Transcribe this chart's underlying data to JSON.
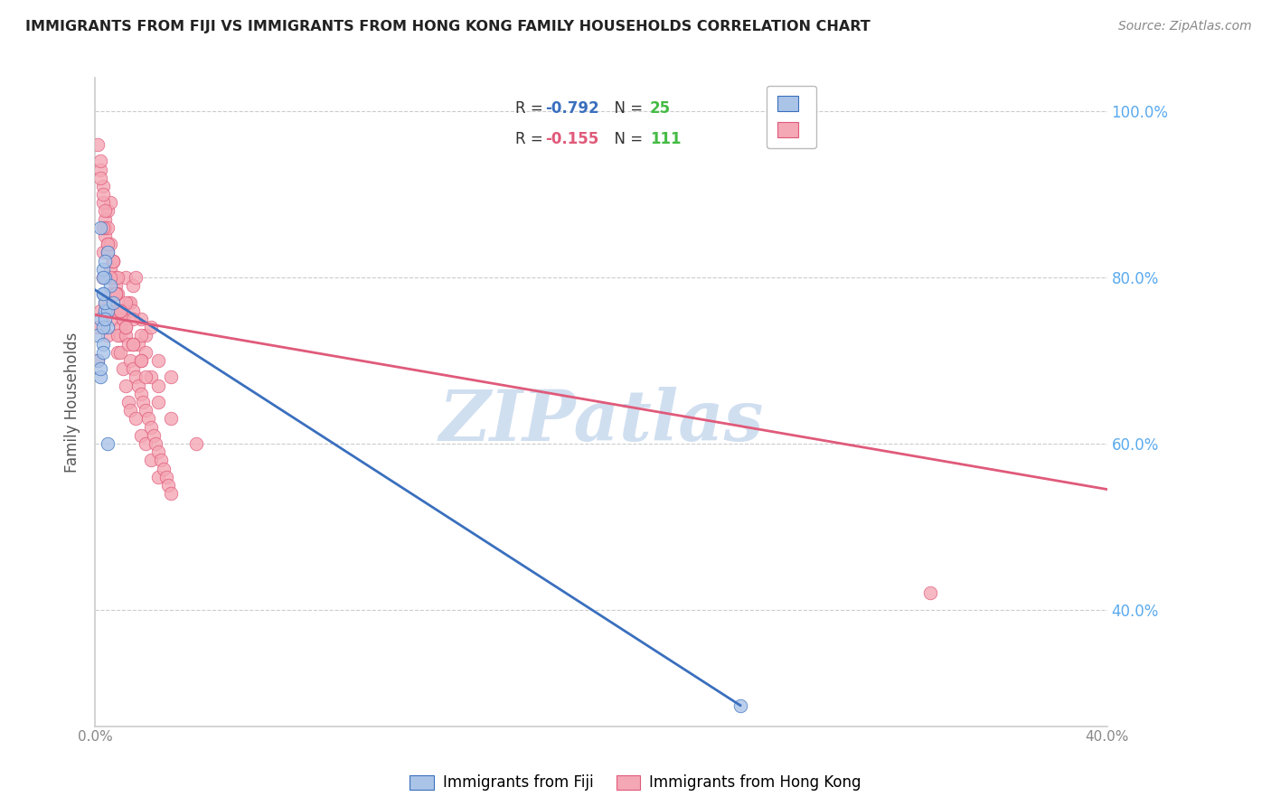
{
  "title": "IMMIGRANTS FROM FIJI VS IMMIGRANTS FROM HONG KONG FAMILY HOUSEHOLDS CORRELATION CHART",
  "source": "Source: ZipAtlas.com",
  "ylabel": "Family Households",
  "xlim": [
    0.0,
    0.4
  ],
  "ylim": [
    0.26,
    1.04
  ],
  "x_ticks": [
    0.0,
    0.05,
    0.1,
    0.15,
    0.2,
    0.25,
    0.3,
    0.35,
    0.4
  ],
  "x_tick_labels": [
    "0.0%",
    "",
    "",
    "",
    "",
    "",
    "",
    "",
    "40.0%"
  ],
  "y_ticks": [
    0.4,
    0.6,
    0.8,
    1.0
  ],
  "y_tick_labels": [
    "40.0%",
    "60.0%",
    "80.0%",
    "100.0%"
  ],
  "fiji_R": -0.792,
  "fiji_N": 25,
  "hk_R": -0.155,
  "hk_N": 111,
  "fiji_color": "#aac4e8",
  "hk_color": "#f4a7b5",
  "fiji_line_color": "#3a6fbe",
  "hk_line_color": "#e05a7a",
  "watermark_color": "#d0dff0",
  "fiji_line_x0": 0.0,
  "fiji_line_y0": 0.785,
  "fiji_line_x1": 0.255,
  "fiji_line_y1": 0.285,
  "hk_line_x0": 0.0,
  "hk_line_y0": 0.755,
  "hk_line_x1": 0.4,
  "hk_line_y1": 0.545,
  "fiji_scatter_x": [
    0.001,
    0.002,
    0.003,
    0.001,
    0.003,
    0.004,
    0.005,
    0.002,
    0.003,
    0.004,
    0.006,
    0.005,
    0.003,
    0.004,
    0.002,
    0.007,
    0.005,
    0.003,
    0.002,
    0.004,
    0.003,
    0.003,
    0.004,
    0.005,
    0.255
  ],
  "fiji_scatter_y": [
    0.73,
    0.75,
    0.78,
    0.7,
    0.72,
    0.76,
    0.74,
    0.68,
    0.71,
    0.8,
    0.79,
    0.76,
    0.74,
    0.77,
    0.69,
    0.77,
    0.83,
    0.81,
    0.86,
    0.82,
    0.78,
    0.8,
    0.75,
    0.6,
    0.285
  ],
  "hk_scatter_x": [
    0.001,
    0.002,
    0.001,
    0.003,
    0.002,
    0.004,
    0.003,
    0.005,
    0.004,
    0.006,
    0.005,
    0.003,
    0.007,
    0.006,
    0.004,
    0.008,
    0.007,
    0.005,
    0.009,
    0.006,
    0.01,
    0.008,
    0.012,
    0.009,
    0.015,
    0.011,
    0.013,
    0.01,
    0.016,
    0.014,
    0.018,
    0.02,
    0.015,
    0.022,
    0.017,
    0.025,
    0.03,
    0.002,
    0.003,
    0.004,
    0.005,
    0.006,
    0.007,
    0.008,
    0.009,
    0.01,
    0.011,
    0.012,
    0.013,
    0.014,
    0.016,
    0.018,
    0.02,
    0.022,
    0.025,
    0.001,
    0.002,
    0.003,
    0.004,
    0.005,
    0.006,
    0.007,
    0.008,
    0.009,
    0.01,
    0.011,
    0.012,
    0.013,
    0.014,
    0.015,
    0.016,
    0.017,
    0.018,
    0.019,
    0.02,
    0.021,
    0.022,
    0.023,
    0.024,
    0.025,
    0.026,
    0.027,
    0.028,
    0.029,
    0.03,
    0.003,
    0.005,
    0.007,
    0.009,
    0.012,
    0.015,
    0.018,
    0.02,
    0.008,
    0.01,
    0.012,
    0.015,
    0.018,
    0.022,
    0.025,
    0.006,
    0.008,
    0.01,
    0.012,
    0.015,
    0.018,
    0.02,
    0.025,
    0.03,
    0.04,
    0.33
  ],
  "hk_scatter_y": [
    0.74,
    0.76,
    0.7,
    0.91,
    0.93,
    0.87,
    0.83,
    0.88,
    0.85,
    0.89,
    0.84,
    0.8,
    0.82,
    0.78,
    0.77,
    0.79,
    0.75,
    0.73,
    0.71,
    0.76,
    0.74,
    0.78,
    0.8,
    0.76,
    0.79,
    0.75,
    0.77,
    0.73,
    0.8,
    0.77,
    0.75,
    0.73,
    0.76,
    0.74,
    0.72,
    0.7,
    0.68,
    0.92,
    0.89,
    0.86,
    0.83,
    0.81,
    0.78,
    0.76,
    0.73,
    0.71,
    0.69,
    0.67,
    0.65,
    0.64,
    0.63,
    0.61,
    0.6,
    0.58,
    0.56,
    0.96,
    0.94,
    0.9,
    0.88,
    0.86,
    0.84,
    0.82,
    0.8,
    0.78,
    0.76,
    0.75,
    0.73,
    0.72,
    0.7,
    0.69,
    0.68,
    0.67,
    0.66,
    0.65,
    0.64,
    0.63,
    0.62,
    0.61,
    0.6,
    0.59,
    0.58,
    0.57,
    0.56,
    0.55,
    0.54,
    0.86,
    0.84,
    0.82,
    0.8,
    0.77,
    0.75,
    0.73,
    0.71,
    0.78,
    0.76,
    0.74,
    0.72,
    0.7,
    0.68,
    0.67,
    0.8,
    0.78,
    0.76,
    0.74,
    0.72,
    0.7,
    0.68,
    0.65,
    0.63,
    0.6,
    0.42
  ]
}
